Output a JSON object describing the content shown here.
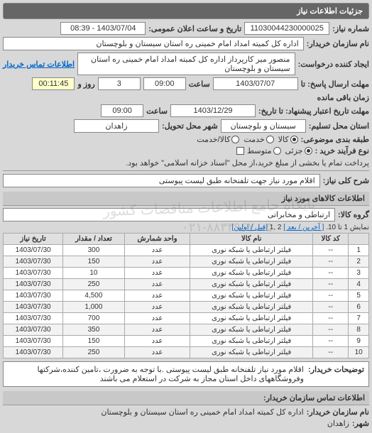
{
  "header": {
    "title": "جزئیات اطلاعات نیاز"
  },
  "info": {
    "need_no_label": "شماره نیاز:",
    "need_no": "11030044230000025",
    "announce_label": "تاریخ و ساعت اعلان عمومی:",
    "announce_val": "1403/07/04 - 08:39",
    "buyer_org_label": "نام سازمان خریدار:",
    "buyer_org": "اداره کل کمیته امداد امام خمینی  ره  استان سیستان و بلوچستان",
    "requester_label": "ایجاد کننده درخواست:",
    "requester": "منصور میر کارپرداز اداره کل کمیته امداد امام خمینی  ره  استان سیستان و بلوچستان",
    "contact_link": "اطلاعات تماس خریدار",
    "deadline_send_label": "مهلت ارسال پاسخ: تا",
    "deadline_send_date": "1403/07/07",
    "time_label": "ساعت",
    "deadline_send_time": "09:00",
    "remain_label": "زمان باقی مانده",
    "remain_days": "3",
    "remain_days_label": "روز و",
    "remain_time": "00:11:45",
    "validity_label": "مهلت تاریخ اعتبار پیشنهاد: تا تاریخ:",
    "validity_date": "1403/12/29",
    "validity_time": "09:00",
    "province_label": "استان محل تسلیم:",
    "province": "سیستان و بلوچستان",
    "city_label": "شهر محل تحویل:",
    "city": "زاهدان",
    "group_type_label": "طبقه بندی موضوعی:",
    "g_goods": "کالا",
    "g_service": "خدمت",
    "g_both": "کالا/خدمت",
    "process_label": "نوع فرآیند خرید :",
    "p_small": "جزئی",
    "p_medium": "متوسط",
    "p_note": "پرداخت تمام یا بخشی از مبلغ خرید،از محل \"اسناد خزانه اسلامی\" خواهد بود."
  },
  "need_desc": {
    "label": "شرح کلی نیاز:",
    "value": "اقلام مورد نیاز جهت تلفنخانه طبق لیست پیوستی"
  },
  "goods": {
    "section_title": "اطلاعات کالاهای مورد نیاز",
    "group_label": "گروه کالا:",
    "group_value": "ارتباطی و مخابراتی",
    "pager_text1": "نمایش 1 تا 10.",
    "pager_prev": "[ آخرین / بعد ]",
    "pager_pages": "2 ,1",
    "pager_next": "[قبل / اولین]",
    "columns": [
      "",
      "کد کالا",
      "نام کالا",
      "واحد شمارش",
      "تعداد / مقدار",
      "تاریخ نیاز"
    ],
    "rows": [
      [
        "1",
        "--",
        "فیلتر ارتباطی یا شبکه نوری",
        "عدد",
        "300",
        "1403/07/30"
      ],
      [
        "2",
        "--",
        "فیلتر ارتباطی یا شبکه نوری",
        "عدد",
        "150",
        "1403/07/30"
      ],
      [
        "3",
        "--",
        "فیلتر ارتباطی یا شبکه نوری",
        "عدد",
        "10",
        "1403/07/30"
      ],
      [
        "4",
        "--",
        "فیلتر ارتباطی یا شبکه نوری",
        "عدد",
        "250",
        "1403/07/30"
      ],
      [
        "5",
        "--",
        "فیلتر ارتباطی یا شبکه نوری",
        "عدد",
        "4,500",
        "1403/07/30"
      ],
      [
        "6",
        "--",
        "فیلتر ارتباطی یا شبکه نوری",
        "عدد",
        "1,000",
        "1403/07/30"
      ],
      [
        "7",
        "--",
        "فیلتر ارتباطی یا شبکه نوری",
        "عدد",
        "700",
        "1403/07/30"
      ],
      [
        "8",
        "--",
        "فیلتر ارتباطی یا شبکه نوری",
        "عدد",
        "350",
        "1403/07/30"
      ],
      [
        "9",
        "--",
        "فیلتر ارتباطی یا شبکه نوری",
        "عدد",
        "150",
        "1403/07/30"
      ],
      [
        "10",
        "--",
        "فیلتر ارتباطی یا شبکه نوری",
        "عدد",
        "250",
        "1403/07/30"
      ]
    ]
  },
  "explain": {
    "label": "توضیحات خریدار:",
    "text": "اقلام مورد نیاز تلفنخانه طبق لیست پیوستی .با توجه به ضرورت ،تامین کننده،شرکتها وفروشگاههای داخل استان مجاز به شرکت در استعلام می باشند"
  },
  "contact": {
    "section_title": "اطلاعات تماس سازمان خریدار:",
    "org_label": "نام سازمان خریدار:",
    "org_value": "اداره کل کمیته امداد امام خمینی ره استان سیستان و بلوچستان",
    "city_label": "شهر:",
    "city_value": "زاهدان"
  },
  "watermark": {
    "line1": "پایگاه جامع اطلاعات مناقصات کشور",
    "line2": "۰۲۱-۸۸۳۴۹۶۷۰-۵"
  }
}
